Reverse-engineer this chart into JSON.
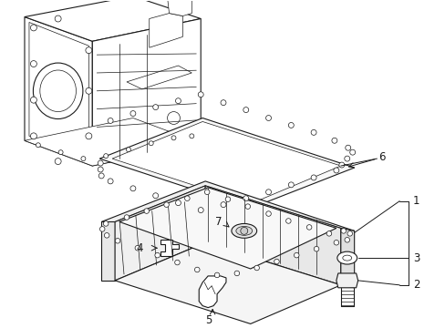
{
  "bg_color": "#ffffff",
  "line_color": "#1a1a1a",
  "lw": 0.8,
  "lw_thin": 0.5,
  "label_fontsize": 8.5
}
